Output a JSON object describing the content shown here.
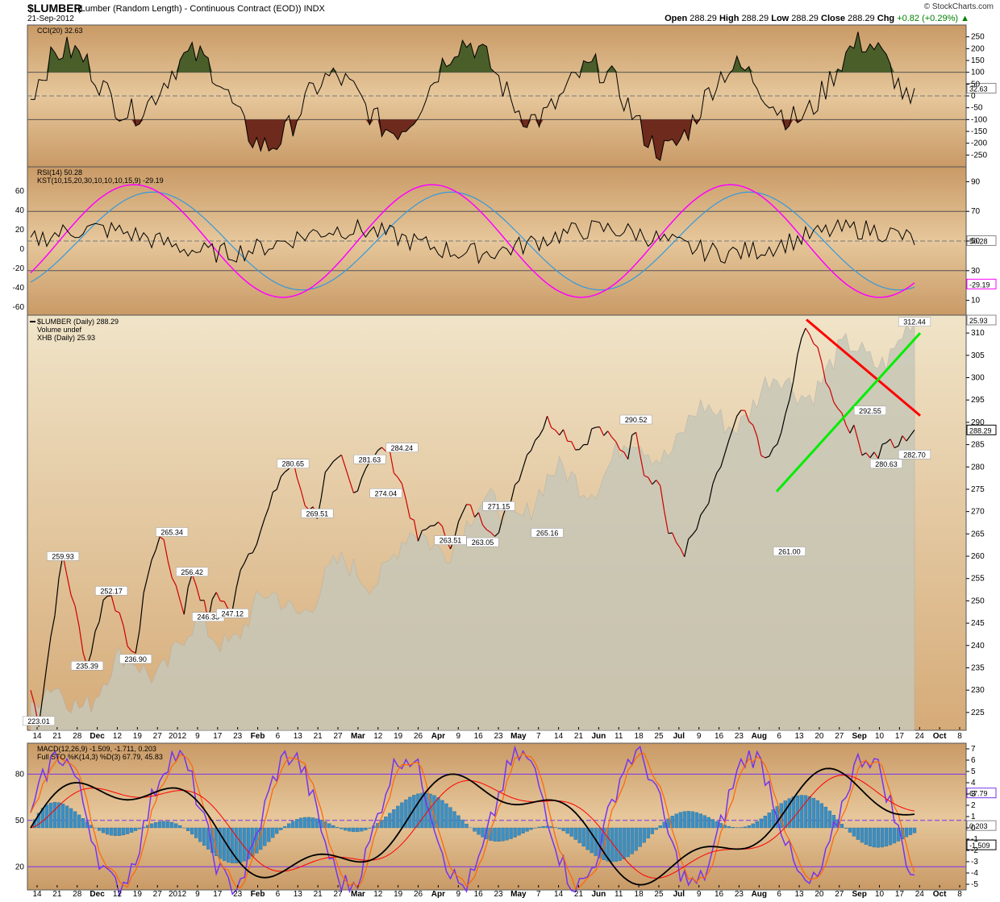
{
  "header": {
    "symbol": "$LUMBER",
    "description": "(Lumber (Random Length) - Continuous Contract (EOD)) INDX",
    "date": "21-Sep-2012",
    "logo": "© StockCharts.com",
    "open_label": "Open",
    "open": "288.29",
    "high_label": "High",
    "high": "288.29",
    "low_label": "Low",
    "low": "288.29",
    "close_label": "Close",
    "close": "288.29",
    "chg_label": "Chg",
    "chg": "+0.82 (+0.29%)"
  },
  "colors": {
    "background": "#d4a978",
    "price_up": "#000000",
    "price_down": "#cc0000",
    "volume_area": "#c8c8b8",
    "cci_fill_pos": "#4a5e2a",
    "cci_fill_neg": "#6e2a1c",
    "rsi": "#000000",
    "kst": "#ff00ff",
    "kst_signal": "#3399dd",
    "macd": "#000000",
    "macd_signal": "#ff0000",
    "macd_hist": "#3a8fc4",
    "sto_k": "#7733ee",
    "sto_d": "#ff6600",
    "trend_red": "#ff0000",
    "trend_green": "#00ee00"
  },
  "chart_data": [
    {
      "type": "line",
      "panel": "CCI",
      "legend": "CCI(20) 32.63",
      "right_axis": [
        "250",
        "200",
        "150",
        "100",
        "50",
        "0",
        "-50",
        "-100",
        "-150",
        "-200",
        "-250"
      ],
      "marker": "32.63",
      "ylim": [
        -300,
        300
      ],
      "reference_levels": [
        100,
        0,
        -100
      ]
    },
    {
      "type": "line",
      "panel": "RSI/KST",
      "legend": [
        "RSI(14) 50.28",
        "KST(10,15,20,30,10,10,10,15,9) -29.19"
      ],
      "left_axis": [
        "60",
        "40",
        "20",
        "0",
        "-20",
        "-40",
        "-60"
      ],
      "right_axis": [
        "90",
        "70",
        "50",
        "30",
        "10"
      ],
      "markers": [
        "50.28",
        "-29.19"
      ],
      "reference_levels": [
        70,
        30
      ]
    },
    {
      "type": "line",
      "panel": "Price",
      "legend": [
        "$LUMBER (Daily) 288.29",
        "Volume undef",
        "XHB (Daily) 25.93"
      ],
      "right_axis": [
        "310",
        "305",
        "300",
        "295",
        "290",
        "285",
        "280",
        "275",
        "270",
        "265",
        "260",
        "255",
        "250",
        "245",
        "240",
        "235",
        "230",
        "225"
      ],
      "markers": [
        "25.93",
        "288.29"
      ],
      "ylim": [
        221,
        314
      ],
      "x": [
        "Nov 12",
        "Nov 14",
        "Nov 19",
        "Nov 21",
        "Nov 26",
        "Nov 28",
        "Dec 5",
        "Dec 10",
        "Dec 12",
        "Dec 17",
        "Dec 19",
        "Dec 24",
        "Dec 27",
        "Dec 31",
        "Jan 4",
        "Jan 9",
        "Jan 11",
        "Jan 16",
        "Jan 20",
        "Jan 23",
        "Jan 30",
        "Feb 3",
        "Feb 6",
        "Feb 10",
        "Feb 13",
        "Feb 19",
        "Feb 21",
        "Feb 24",
        "Feb 27",
        "Mar 3",
        "Mar 6",
        "Mar 12",
        "Mar 14",
        "Mar 19",
        "Mar 21",
        "Mar 26",
        "Mar 28",
        "Apr 2",
        "Apr 4",
        "Apr 9",
        "Apr 11",
        "Apr 16",
        "Apr 18",
        "Apr 23",
        "Apr 27",
        "May 2",
        "May 7",
        "May 9",
        "May 14",
        "May 18",
        "May 21",
        "May 25",
        "May 29",
        "Jun 4",
        "Jun 6",
        "Jun 11",
        "Jun 15",
        "Jun 18",
        "Jun 20",
        "Jun 25",
        "Jun 29",
        "Jul 5",
        "Jul 9",
        "Jul 13",
        "Jul 16",
        "Jul 20",
        "Jul 23",
        "Jul 27",
        "Jul 30",
        "Aug 3",
        "Aug 6",
        "Aug 10",
        "Aug 13",
        "Aug 15",
        "Aug 20",
        "Aug 24",
        "Aug 27",
        "Aug 31",
        "Sep 4",
        "Sep 7",
        "Sep 10",
        "Sep 14",
        "Sep 17",
        "Sep 21"
      ],
      "values": [
        230,
        223.01,
        242,
        259.93,
        248,
        235.39,
        250,
        252.17,
        243,
        236.9,
        252,
        265.34,
        256,
        248,
        256.42,
        246.33,
        252,
        247.12,
        258,
        262,
        268,
        278,
        280.65,
        272,
        269.51,
        278,
        281.63,
        274.04,
        282,
        284.24,
        276,
        263.51,
        268,
        263.05,
        271.15,
        268,
        265.16,
        276,
        285,
        290.52,
        288,
        284,
        289,
        286,
        283,
        289,
        279,
        276,
        265,
        261.0,
        266,
        272,
        283,
        292.55,
        287,
        280.63,
        287,
        295,
        304,
        312.44,
        303,
        297,
        294,
        290,
        288,
        284,
        283,
        282.7,
        286,
        284,
        286,
        288.29,
        288.29,
        288.29,
        288.29,
        288.29,
        288.29,
        288.29,
        288.29,
        288.29,
        288.29,
        288.29,
        288.29,
        288.29
      ],
      "data_labels": [
        {
          "x": "Nov 14",
          "label": "223.01"
        },
        {
          "x": "Nov 21",
          "label": "259.93"
        },
        {
          "x": "Nov 28",
          "label": "235.39"
        },
        {
          "x": "Dec 10",
          "label": "252.17"
        },
        {
          "x": "Dec 17",
          "label": "236.90"
        },
        {
          "x": "Dec 27",
          "label": "265.34"
        },
        {
          "x": "Jan 4",
          "label": "256.42"
        },
        {
          "x": "Jan 9",
          "label": "246.33"
        },
        {
          "x": "Jan 16",
          "label": "247.12"
        },
        {
          "x": "Feb 6",
          "label": "280.65"
        },
        {
          "x": "Feb 13",
          "label": "269.51"
        },
        {
          "x": "Feb 27",
          "label": "281.63"
        },
        {
          "x": "Mar 3",
          "label": "274.04"
        },
        {
          "x": "Mar 6",
          "label": "284.24"
        },
        {
          "x": "Mar 19",
          "label": "263.51"
        },
        {
          "x": "Mar 26",
          "label": "263.05"
        },
        {
          "x": "Mar 28",
          "label": "271.15"
        },
        {
          "x": "Apr 9",
          "label": "265.16"
        },
        {
          "x": "May 2",
          "label": "290.52"
        },
        {
          "x": "Jun 18",
          "label": "261.00"
        },
        {
          "x": "Jul 23",
          "label": "292.55"
        },
        {
          "x": "Jul 30",
          "label": "280.63"
        },
        {
          "x": "Aug 15",
          "label": "312.44"
        },
        {
          "x": "Sep 10",
          "label": "282.70"
        }
      ]
    },
    {
      "type": "line",
      "panel": "MACD/STO",
      "legend": [
        "MACD(12,26,9) -1.509, -1.711, 0.203",
        "Full STO %K(14,3) %D(3) 67.79, 45.83"
      ],
      "left_axis": [
        "80",
        "50",
        "20"
      ],
      "right_axis": [
        "7",
        "6",
        "5",
        "4",
        "3",
        "2",
        "1",
        "0",
        "-1",
        "-2",
        "-3",
        "-4",
        "-5"
      ],
      "markers": [
        "67.79",
        "0.203",
        "-1.509"
      ]
    }
  ],
  "x_axis": {
    "ticks": [
      "14",
      "21",
      "28",
      "Dec",
      "12",
      "19",
      "27",
      "2012",
      "9",
      "17",
      "23",
      "Feb",
      "6",
      "13",
      "21",
      "27",
      "Mar",
      "12",
      "19",
      "26",
      "Apr",
      "9",
      "16",
      "23",
      "May",
      "7",
      "14",
      "21",
      "Jun",
      "11",
      "18",
      "25",
      "Jul",
      "9",
      "16",
      "23",
      "Aug",
      "6",
      "13",
      "20",
      "27",
      "Sep",
      "10",
      "17",
      "24",
      "Oct",
      "8"
    ]
  }
}
